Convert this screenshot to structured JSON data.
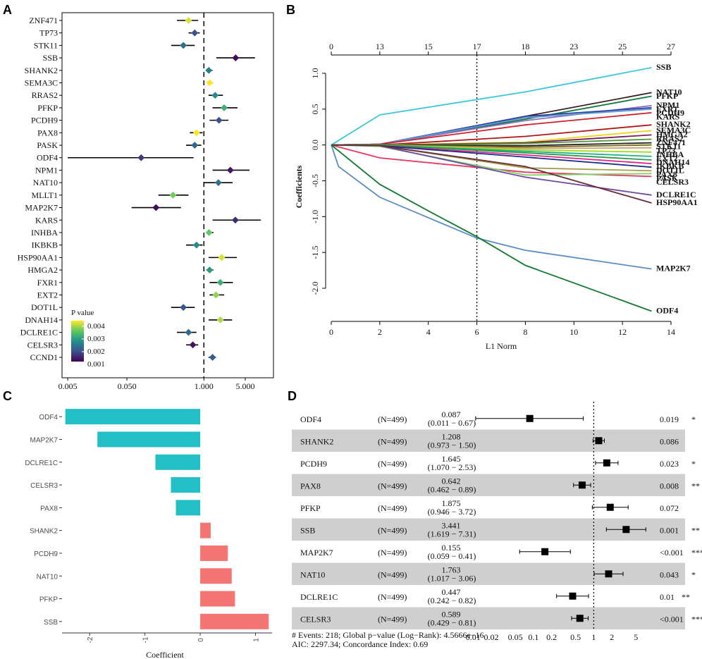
{
  "panels": {
    "A": "A",
    "B": "B",
    "C": "C",
    "D": "D"
  },
  "chart_data": [
    {
      "type": "scatter",
      "panel": "A",
      "title": "",
      "xlabel": "",
      "x_scale": "log",
      "xlim": [
        0.004,
        15
      ],
      "x_ticks": [
        0.005,
        0.05,
        1,
        5
      ],
      "x_tick_labels": [
        "0.005",
        "0.050",
        "1.000",
        "5.000"
      ],
      "reference_line": 1,
      "legend": {
        "title": "P value",
        "labels": [
          "0.004",
          "0.003",
          "0.002",
          "0.001"
        ],
        "placement": "bottom-left"
      },
      "rows": [
        {
          "name": "ZNF471",
          "hr": 0.55,
          "lo": 0.35,
          "hi": 0.8,
          "p": 0.0043
        },
        {
          "name": "TP73",
          "hr": 0.7,
          "lo": 0.55,
          "hi": 0.85,
          "p": 0.0015
        },
        {
          "name": "STK11",
          "hr": 0.45,
          "lo": 0.28,
          "hi": 0.7,
          "p": 0.002
        },
        {
          "name": "SSB",
          "hr": 3.44,
          "lo": 1.62,
          "hi": 7.31,
          "p": 0.0006
        },
        {
          "name": "SHANK2",
          "hr": 1.21,
          "lo": 1.08,
          "hi": 1.4,
          "p": 0.0022
        },
        {
          "name": "SEMA3C",
          "hr": 1.25,
          "lo": 1.15,
          "hi": 1.42,
          "p": 0.0046
        },
        {
          "name": "RRAS2",
          "hr": 1.55,
          "lo": 1.2,
          "hi": 2.1,
          "p": 0.0024
        },
        {
          "name": "PFKP",
          "hr": 2.2,
          "lo": 1.4,
          "hi": 3.7,
          "p": 0.003
        },
        {
          "name": "PCDH9",
          "hr": 1.8,
          "lo": 1.25,
          "hi": 2.6,
          "p": 0.0015
        },
        {
          "name": "PAX8",
          "hr": 0.75,
          "lo": 0.58,
          "hi": 0.95,
          "p": 0.0046
        },
        {
          "name": "PASK",
          "hr": 0.7,
          "lo": 0.5,
          "hi": 0.9,
          "p": 0.0018
        },
        {
          "name": "ODF4",
          "hr": 0.087,
          "lo": 0.005,
          "hi": 0.67,
          "p": 0.0012
        },
        {
          "name": "NPM1",
          "hr": 2.8,
          "lo": 1.4,
          "hi": 5.9,
          "p": 0.0008
        },
        {
          "name": "NAT10",
          "hr": 1.76,
          "lo": 1.02,
          "hi": 3.06,
          "p": 0.002
        },
        {
          "name": "MLLT1",
          "hr": 0.3,
          "lo": 0.17,
          "hi": 0.55,
          "p": 0.0036
        },
        {
          "name": "MAP2K7",
          "hr": 0.155,
          "lo": 0.06,
          "hi": 0.41,
          "p": 0.0006
        },
        {
          "name": "KARS",
          "hr": 3.4,
          "lo": 1.4,
          "hi": 9.2,
          "p": 0.001
        },
        {
          "name": "INHBA",
          "hr": 1.22,
          "lo": 1.1,
          "hi": 1.45,
          "p": 0.0035
        },
        {
          "name": "IKBKB",
          "hr": 0.75,
          "lo": 0.5,
          "hi": 0.95,
          "p": 0.0024
        },
        {
          "name": "HSP90AA1",
          "hr": 2.0,
          "lo": 1.2,
          "hi": 3.6,
          "p": 0.0043
        },
        {
          "name": "HMGA2",
          "hr": 1.25,
          "lo": 1.1,
          "hi": 1.45,
          "p": 0.0027
        },
        {
          "name": "FXR1",
          "hr": 1.9,
          "lo": 1.25,
          "hi": 3.1,
          "p": 0.003
        },
        {
          "name": "EXT2",
          "hr": 1.6,
          "lo": 1.25,
          "hi": 2.2,
          "p": 0.0038
        },
        {
          "name": "DOT1L",
          "hr": 0.45,
          "lo": 0.28,
          "hi": 0.7,
          "p": 0.0016
        },
        {
          "name": "DNAH14",
          "hr": 1.9,
          "lo": 1.2,
          "hi": 3.0,
          "p": 0.004
        },
        {
          "name": "DCLRE1C",
          "hr": 0.55,
          "lo": 0.35,
          "hi": 0.75,
          "p": 0.0019
        },
        {
          "name": "CELSR3",
          "hr": 0.65,
          "lo": 0.5,
          "hi": 0.8,
          "p": 0.0007
        },
        {
          "name": "CCND1",
          "hr": 1.4,
          "lo": 1.2,
          "hi": 1.6,
          "p": 0.0017
        }
      ]
    },
    {
      "type": "line",
      "panel": "B",
      "xlabel": "L1  Norm",
      "ylabel": "Coefficients",
      "xlim": [
        0,
        14
      ],
      "ylim": [
        -2.5,
        1.2
      ],
      "x_ticks": [
        0,
        2,
        4,
        6,
        8,
        10,
        12,
        14
      ],
      "y_ticks": [
        1.0,
        0.5,
        0.0,
        -0.5,
        -1.0,
        -1.5,
        -2.0
      ],
      "y_tick_labels": [
        "1.0",
        "0.5",
        "0.0",
        "-0.5",
        "-1.0",
        "-1.5",
        "-2.0"
      ],
      "top_axis_labels": [
        "0",
        "13",
        "15",
        "17",
        "18",
        "23",
        "25",
        "27"
      ],
      "top_axis_positions": [
        0,
        2,
        4,
        6,
        8,
        10,
        12,
        14
      ],
      "vline": 6,
      "series": [
        {
          "name": "SSB",
          "color": "#3ec7d8",
          "x": [
            0,
            2,
            8,
            13.2
          ],
          "y": [
            0,
            0.42,
            0.74,
            1.08
          ]
        },
        {
          "name": "NAT10",
          "color": "#3a1f1f",
          "x": [
            0,
            2,
            8,
            13.2
          ],
          "y": [
            0,
            0.01,
            0.4,
            0.73
          ]
        },
        {
          "name": "PFKP",
          "color": "#0e7a3b",
          "x": [
            0,
            2,
            8,
            13.2
          ],
          "y": [
            0,
            0.01,
            0.36,
            0.68
          ]
        },
        {
          "name": "NPM1",
          "color": "#8d6fbf",
          "x": [
            0,
            2,
            8,
            13.2
          ],
          "y": [
            0,
            0.01,
            0.34,
            0.55
          ]
        },
        {
          "name": "FXR1",
          "color": "#2a3fa8",
          "x": [
            0,
            2,
            8,
            13.2
          ],
          "y": [
            0,
            0.01,
            0.4,
            0.52
          ]
        },
        {
          "name": "PCDH9",
          "color": "#5e9ad0",
          "x": [
            0,
            2,
            8,
            13.2
          ],
          "y": [
            0,
            0.01,
            0.38,
            0.5
          ]
        },
        {
          "name": "KARS",
          "color": "#d0202c",
          "x": [
            0,
            2,
            8,
            13.2
          ],
          "y": [
            0,
            0.01,
            0.28,
            0.45
          ]
        },
        {
          "name": "SHANK2",
          "color": "#b01818",
          "x": [
            0,
            2,
            8,
            13.2
          ],
          "y": [
            0,
            0.0,
            0.12,
            0.28
          ]
        },
        {
          "name": "SEMA3C",
          "color": "#e7d61a",
          "x": [
            0,
            2,
            8,
            13.2
          ],
          "y": [
            0,
            0.0,
            0.04,
            0.2
          ]
        },
        {
          "name": "HMGA2",
          "color": "#7b1c5c",
          "x": [
            0,
            2,
            8,
            13.2
          ],
          "y": [
            0,
            0.0,
            0.03,
            0.14
          ]
        },
        {
          "name": "RRAS2",
          "color": "#4c9a3b",
          "x": [
            0,
            2,
            8,
            13.2
          ],
          "y": [
            0,
            0.0,
            0.02,
            0.08
          ]
        },
        {
          "name": "ZNF471",
          "color": "#222222",
          "x": [
            0,
            2,
            8,
            13.2
          ],
          "y": [
            0,
            0.0,
            -0.01,
            0.03
          ]
        },
        {
          "name": "STK11",
          "color": "#7a6a1a",
          "x": [
            0,
            2,
            8,
            13.2
          ],
          "y": [
            0,
            0.0,
            -0.03,
            0.0
          ]
        },
        {
          "name": "TP73",
          "color": "#c4a66b",
          "x": [
            0,
            2,
            8,
            13.2
          ],
          "y": [
            0,
            0.0,
            -0.05,
            -0.04
          ]
        },
        {
          "name": "INHBA",
          "color": "#a6d91a",
          "x": [
            0,
            2,
            8,
            13.2
          ],
          "y": [
            0,
            0.0,
            -0.07,
            -0.1
          ]
        },
        {
          "name": "EXT2",
          "color": "#17b08a",
          "x": [
            0,
            2,
            8,
            13.2
          ],
          "y": [
            0,
            0.0,
            -0.09,
            -0.16
          ]
        },
        {
          "name": "DNAH14",
          "color": "#2e9a48",
          "x": [
            0,
            2,
            8,
            13.2
          ],
          "y": [
            0,
            0.0,
            -0.11,
            -0.21
          ]
        },
        {
          "name": "IKBKB",
          "color": "#e0218a",
          "x": [
            0,
            2,
            8,
            13.2
          ],
          "y": [
            0,
            -0.01,
            -0.14,
            -0.26
          ]
        },
        {
          "name": "DOT1L",
          "color": "#1a2f8a",
          "x": [
            0,
            2,
            8,
            13.2
          ],
          "y": [
            0,
            -0.01,
            -0.17,
            -0.31
          ]
        },
        {
          "name": "PAX8",
          "color": "#a3a04a",
          "x": [
            0,
            2,
            8,
            13.2
          ],
          "y": [
            0,
            -0.01,
            -0.32,
            -0.36
          ]
        },
        {
          "name": "CELSR3",
          "color": "#e8375e",
          "x": [
            0,
            2,
            8,
            13.2
          ],
          "y": [
            0,
            -0.18,
            -0.38,
            -0.44
          ]
        },
        {
          "name": "PASK",
          "color": "#7fcf6a",
          "x": [
            0,
            2,
            8,
            13.2
          ],
          "y": [
            0,
            -0.02,
            -0.42,
            -0.4
          ]
        },
        {
          "name": "DCLRE1C",
          "color": "#6d4aa0",
          "x": [
            0,
            2,
            8,
            13.2
          ],
          "y": [
            0,
            -0.01,
            -0.45,
            -0.7
          ]
        },
        {
          "name": "HSP90AA1",
          "color": "#6a2a3a",
          "x": [
            0,
            2,
            8,
            13.2
          ],
          "y": [
            0,
            -0.01,
            -0.3,
            -0.81
          ]
        },
        {
          "name": "MAP2K7",
          "color": "#5a8cc4",
          "x": [
            0,
            0.3,
            2,
            6,
            8,
            13.2
          ],
          "y": [
            0,
            -0.3,
            -0.73,
            -1.3,
            -1.47,
            -1.73
          ]
        },
        {
          "name": "ODF4",
          "color": "#127a2f",
          "x": [
            0,
            2,
            4,
            6,
            8,
            13.2
          ],
          "y": [
            0,
            -0.55,
            -0.92,
            -1.28,
            -1.68,
            -2.32
          ]
        }
      ]
    },
    {
      "type": "bar",
      "panel": "C",
      "orientation": "horizontal",
      "xlabel": "Coefficient",
      "xlim": [
        -2.5,
        1.3
      ],
      "x_ticks": [
        -2,
        -1,
        0,
        1
      ],
      "categories": [
        "ODF4",
        "MAP2K7",
        "DCLRE1C",
        "CELSR3",
        "PAX8",
        "SHANK2",
        "PCDH9",
        "NAT10",
        "PFKP",
        "SSB"
      ],
      "values": [
        -2.44,
        -1.86,
        -0.81,
        -0.53,
        -0.44,
        0.19,
        0.5,
        0.57,
        0.63,
        1.24
      ],
      "colors": {
        "negative": "#22bfc6",
        "positive": "#f57474"
      }
    },
    {
      "type": "table",
      "panel": "D",
      "x_scale": "log",
      "xlim": [
        0.007,
        10
      ],
      "x_ticks": [
        0.01,
        0.02,
        0.05,
        0.1,
        0.2,
        0.5,
        1,
        2,
        5
      ],
      "x_tick_labels": [
        "0.01",
        "0.02",
        "0.05",
        "0.1",
        "0.2",
        "0.5",
        "1",
        "2",
        "5"
      ],
      "reference_line": 1,
      "rows": [
        {
          "name": "ODF4",
          "n": "(N=499)",
          "hr": 0.087,
          "hr_label": "0.087",
          "ci_label": "(0.011 − 0.67)",
          "lo": 0.011,
          "hi": 0.67,
          "p": "0.019",
          "sig": "*"
        },
        {
          "name": "SHANK2",
          "n": "(N=499)",
          "hr": 1.208,
          "hr_label": "1.208",
          "ci_label": "(0.973 − 1.50)",
          "lo": 0.973,
          "hi": 1.5,
          "p": "0.086",
          "sig": ""
        },
        {
          "name": "PCDH9",
          "n": "(N=499)",
          "hr": 1.645,
          "hr_label": "1.645",
          "ci_label": "(1.070 − 2.53)",
          "lo": 1.07,
          "hi": 2.53,
          "p": "0.023",
          "sig": "*"
        },
        {
          "name": "PAX8",
          "n": "(N=499)",
          "hr": 0.642,
          "hr_label": "0.642",
          "ci_label": "(0.462 − 0.89)",
          "lo": 0.462,
          "hi": 0.89,
          "p": "0.008",
          "sig": "**"
        },
        {
          "name": "PFKP",
          "n": "(N=499)",
          "hr": 1.875,
          "hr_label": "1.875",
          "ci_label": "(0.946 − 3.72)",
          "lo": 0.946,
          "hi": 3.72,
          "p": "0.072",
          "sig": ""
        },
        {
          "name": "SSB",
          "n": "(N=499)",
          "hr": 3.441,
          "hr_label": "3.441",
          "ci_label": "(1.619 − 7.31)",
          "lo": 1.619,
          "hi": 7.31,
          "p": "0.001",
          "sig": "**"
        },
        {
          "name": "MAP2K7",
          "n": "(N=499)",
          "hr": 0.155,
          "hr_label": "0.155",
          "ci_label": "(0.059 − 0.41)",
          "lo": 0.059,
          "hi": 0.41,
          "p": "<0.001",
          "sig": "***"
        },
        {
          "name": "NAT10",
          "n": "(N=499)",
          "hr": 1.763,
          "hr_label": "1.763",
          "ci_label": "(1.017 − 3.06)",
          "lo": 1.017,
          "hi": 3.06,
          "p": "0.043",
          "sig": "*"
        },
        {
          "name": "DCLRE1C",
          "n": "(N=499)",
          "hr": 0.447,
          "hr_label": "0.447",
          "ci_label": "(0.242 − 0.82)",
          "lo": 0.242,
          "hi": 0.82,
          "p": "0.01",
          "sig": "**"
        },
        {
          "name": "CELSR3",
          "n": "(N=499)",
          "hr": 0.589,
          "hr_label": "0.589",
          "ci_label": "(0.429 − 0.81)",
          "lo": 0.429,
          "hi": 0.81,
          "p": "<0.001",
          "sig": "***"
        }
      ],
      "footer_line1": "# Events: 218; Global p−value (Log−Rank): 4.5666e−16",
      "footer_line2": "AIC: 2297.34; Concordance Index: 0.69"
    }
  ]
}
